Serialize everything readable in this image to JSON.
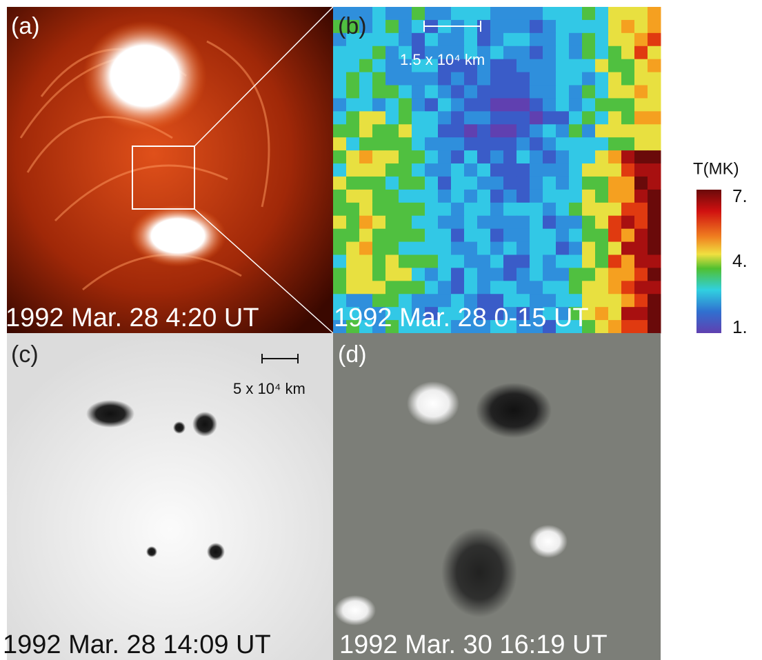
{
  "panels": [
    {
      "label": "(a)",
      "caption": "1992 Mar. 28 4:20 UT"
    },
    {
      "label": "(b)",
      "caption": "1992 Mar. 28 0-15 UT",
      "scale_bar": "1.5 x 10⁴ km"
    },
    {
      "label": "(c)",
      "caption": "1992 Mar. 28 14:09 UT",
      "scale_bar": "5 x 10⁴ km"
    },
    {
      "label": "(d)",
      "caption": "1992 Mar. 30 16:19 UT"
    }
  ],
  "colorbar": {
    "title": "T(MK)",
    "ticks": [
      "7.",
      "4.",
      "1."
    ]
  }
}
